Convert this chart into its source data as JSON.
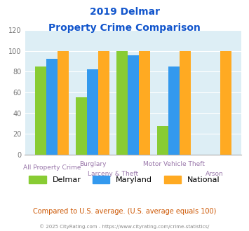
{
  "title_line1": "2019 Delmar",
  "title_line2": "Property Crime Comparison",
  "series": {
    "Delmar": [
      85,
      55,
      100,
      28,
      0
    ],
    "Maryland": [
      92,
      82,
      96,
      85,
      0
    ],
    "National": [
      100,
      100,
      100,
      100,
      100
    ]
  },
  "colors": {
    "Delmar": "#88cc33",
    "Maryland": "#3399ee",
    "National": "#ffaa22"
  },
  "ylim": [
    0,
    120
  ],
  "yticks": [
    0,
    20,
    40,
    60,
    80,
    100,
    120
  ],
  "title_color": "#1155cc",
  "axis_label_color": "#9977aa",
  "plot_bg_color": "#ddeef5",
  "legend_note": "Compared to U.S. average. (U.S. average equals 100)",
  "legend_note_color": "#cc5500",
  "footer": "© 2025 CityRating.com - https://www.cityrating.com/crime-statistics/",
  "footer_color": "#888888",
  "bar_width": 0.28,
  "n_groups": 5
}
